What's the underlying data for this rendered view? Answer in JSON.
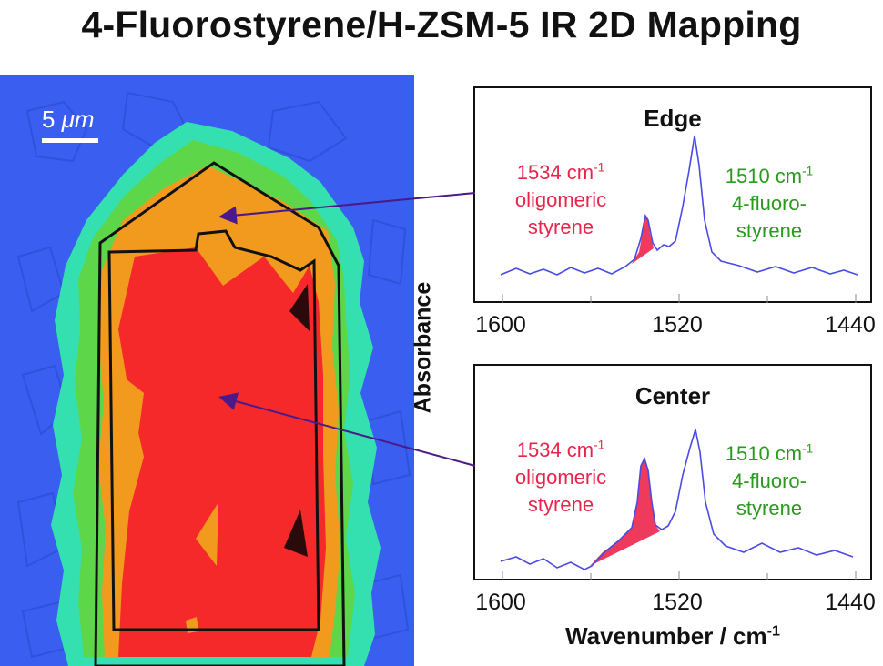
{
  "title": "4-Fluorostyrene/H-ZSM-5 IR 2D Mapping",
  "scale_bar": {
    "prefix": "5 ",
    "unit": "μm"
  },
  "axes": {
    "ylabel": "Absorbance",
    "xlabel_main": "Wavenumber / cm",
    "xlabel_sup": "-1",
    "ticks": [
      "1600",
      "1520",
      "1440"
    ]
  },
  "panels": [
    {
      "title": "Edge",
      "peak_red": {
        "wavenumber": "1534 cm",
        "sup": "-1",
        "line2": "oligomeric",
        "line3": "styrene"
      },
      "peak_green": {
        "wavenumber": "1510 cm",
        "sup": "-1",
        "line2": "4-fluoro-",
        "line3": "styrene"
      }
    },
    {
      "title": "Center",
      "peak_red": {
        "wavenumber": "1534 cm",
        "sup": "-1",
        "line2": "oligomeric",
        "line3": "styrene"
      },
      "peak_green": {
        "wavenumber": "1510 cm",
        "sup": "-1",
        "line2": "4-fluoro-",
        "line3": "styrene"
      }
    }
  ],
  "colors": {
    "background_blue": "#3a5ef0",
    "cyan": "#35e0b0",
    "green": "#5ed64a",
    "orange": "#f29a1e",
    "red": "#f5282a",
    "dark": "#2a0a0a",
    "spectrum": "#4a4ae6",
    "peak_fill": "#ee3a5c",
    "arrow": "#4b1a8a"
  }
}
